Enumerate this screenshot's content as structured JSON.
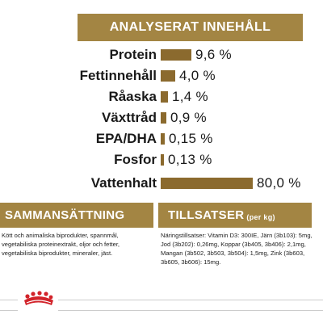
{
  "header": {
    "title": "ANALYSERAT INNEHÅLL"
  },
  "chart_data": {
    "type": "bar",
    "categories": [
      "Protein",
      "Fettinnehåll",
      "Råaska",
      "Växttråd",
      "EPA/DHA",
      "Fosfor",
      "Vattenhalt"
    ],
    "value_labels": [
      "9,6 %",
      "4,0 %",
      "1,4 %",
      "0,9 %",
      "0,15 %",
      "0,13 %",
      "80,0 %"
    ],
    "values": [
      9.6,
      4.0,
      1.4,
      0.9,
      0.15,
      0.13,
      80.0
    ],
    "unit": "%",
    "xlim": [
      0,
      80
    ]
  },
  "sections": {
    "composition": {
      "title": "SAMMANSÄTTNING",
      "text": "Kött och animaliska biprodukter, spannmål, vegetabiliska proteinextrakt, oljor och fetter, vegetabiliska biprodukter, mineraler, jäst."
    },
    "additives": {
      "title": "TILLSATSER",
      "title_suffix": "(per kg)",
      "text": "Näringstillsatser: Vitamin D3: 300IE, Järn (3b103): 5mg, Jod (3b202): 0,26mg, Koppar (3b405, 3b406): 2,1mg, Mangan (3b502, 3b503, 3b504): 1,5mg, Zink (3b603, 3b605, 3b606): 15mg."
    }
  },
  "colors": {
    "accent": "#a38543",
    "bar": "#8b6a2e",
    "brand_red": "#d2232a"
  },
  "footer": {
    "logo_icon": "royal-canin-crown-icon"
  }
}
